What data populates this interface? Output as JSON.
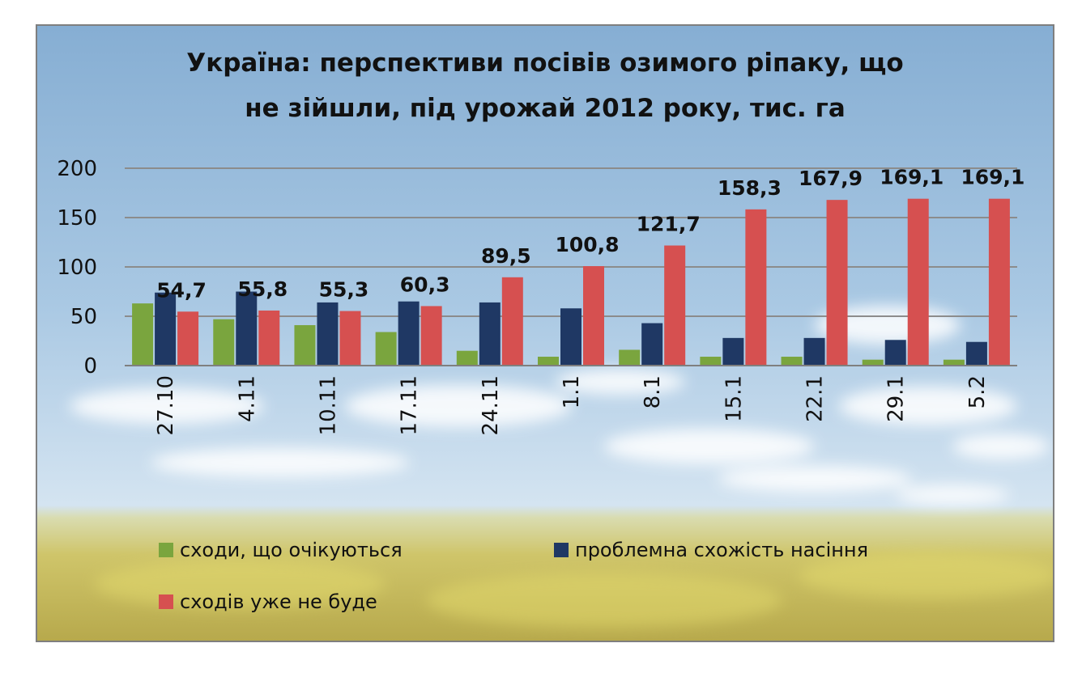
{
  "chart_data": {
    "type": "bar",
    "title": [
      "Україна: перспективи посівів озимого ріпаку, що",
      "не зійшли, під урожай 2012 року, тис. га"
    ],
    "xlabel": "",
    "ylabel": "",
    "ylim": [
      0,
      200
    ],
    "yticks": [
      "200",
      "150",
      "100",
      "50",
      "0"
    ],
    "grid": true,
    "legend_position": "bottom",
    "categories": [
      "27.10",
      "4.11",
      "10.11",
      "17.11",
      "24.11",
      "1.1",
      "8.1",
      "15.1",
      "22.1",
      "29.1",
      "5.2"
    ],
    "series": [
      {
        "name": "сходи, що очікуються",
        "color": "#7aa53e",
        "values": [
          63,
          47,
          41,
          34,
          15,
          9,
          16,
          9,
          9,
          6,
          6
        ]
      },
      {
        "name": "проблемна схожість насіння",
        "color": "#1f3864",
        "values": [
          74,
          75,
          64,
          65,
          64,
          58,
          43,
          28,
          28,
          26,
          24
        ]
      },
      {
        "name": "сходів уже не буде",
        "color": "#d65050",
        "values": [
          54.7,
          55.8,
          55.3,
          60.3,
          89.5,
          100.8,
          121.7,
          158.3,
          167.9,
          169.1,
          169.1
        ],
        "labels": [
          "54,7",
          "55,8",
          "55,3",
          "60,3",
          "89,5",
          "100,8",
          "121,7",
          "158,3",
          "167,9",
          "169,1",
          "169,1"
        ]
      }
    ]
  }
}
